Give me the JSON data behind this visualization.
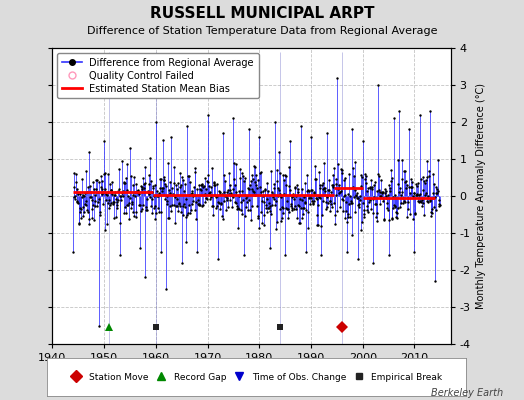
{
  "title": "RUSSELL MUNICIPAL ARPT",
  "subtitle": "Difference of Station Temperature Data from Regional Average",
  "ylabel": "Monthly Temperature Anomaly Difference (°C)",
  "xlabel_years": [
    1940,
    1950,
    1960,
    1970,
    1980,
    1990,
    2000,
    2010
  ],
  "xlim": [
    1940,
    2017
  ],
  "ylim": [
    -4,
    4
  ],
  "yticks": [
    -4,
    -3,
    -2,
    -1,
    0,
    1,
    2,
    3,
    4
  ],
  "background_color": "#dcdcdc",
  "plot_bg_color": "#ffffff",
  "grid_color": "#aaaaaa",
  "line_color": "#3333ff",
  "dot_color": "#000000",
  "bias_color": "#ff0000",
  "watermark": "Berkeley Earth",
  "random_seed": 42,
  "start_year": 1944,
  "end_year": 2014,
  "bias_segments": [
    {
      "start": 1944.0,
      "end": 1959.5,
      "value": 0.12
    },
    {
      "start": 1959.5,
      "end": 1994.5,
      "value": 0.04
    },
    {
      "start": 1994.5,
      "end": 2000.0,
      "value": 0.22
    },
    {
      "start": 2000.0,
      "end": 2014.0,
      "value": -0.06
    }
  ],
  "event_markers": [
    {
      "year": 1996,
      "type": "station_move",
      "color": "#cc0000"
    },
    {
      "year": 1951,
      "type": "record_gap",
      "color": "#008800"
    },
    {
      "year": 1960,
      "type": "empirical_break",
      "color": "#222222"
    },
    {
      "year": 1984,
      "type": "empirical_break",
      "color": "#222222"
    }
  ],
  "title_fontsize": 11,
  "subtitle_fontsize": 8,
  "tick_fontsize": 8,
  "legend_fontsize": 7,
  "ylabel_fontsize": 7
}
